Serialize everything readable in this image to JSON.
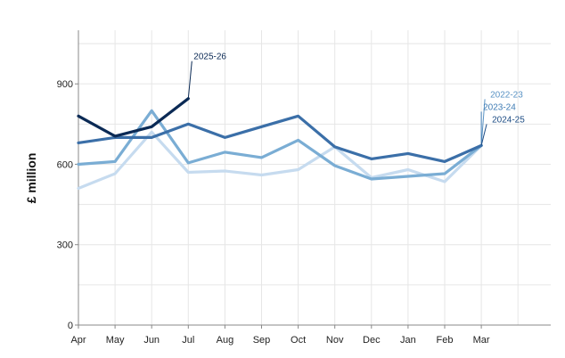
{
  "chart_data": {
    "type": "line",
    "title": "",
    "xlabel": "",
    "ylabel": "£ million",
    "ylim": [
      0,
      1100
    ],
    "yticks": [
      0,
      300,
      600,
      900
    ],
    "grid": true,
    "legend": "direct labels at line ends",
    "categories": [
      "Apr",
      "May",
      "Jun",
      "Jul",
      "Aug",
      "Sep",
      "Oct",
      "Nov",
      "Dec",
      "Jan",
      "Feb",
      "Mar"
    ],
    "series": [
      {
        "name": "2022-23",
        "color": "#c6dbef",
        "values": [
          510,
          565,
          720,
          570,
          575,
          560,
          580,
          665,
          550,
          580,
          535,
          670
        ]
      },
      {
        "name": "2023-24",
        "color": "#7aadd4",
        "values": [
          600,
          610,
          800,
          605,
          645,
          625,
          690,
          595,
          545,
          555,
          565,
          670
        ]
      },
      {
        "name": "2024-25",
        "color": "#3b6fa8",
        "values": [
          680,
          700,
          700,
          750,
          700,
          740,
          780,
          665,
          620,
          640,
          610,
          670
        ]
      },
      {
        "name": "2025-26",
        "color": "#0b2a55",
        "values": [
          780,
          705,
          740,
          845,
          null,
          null,
          null,
          null,
          null,
          null,
          null,
          null
        ]
      }
    ]
  }
}
